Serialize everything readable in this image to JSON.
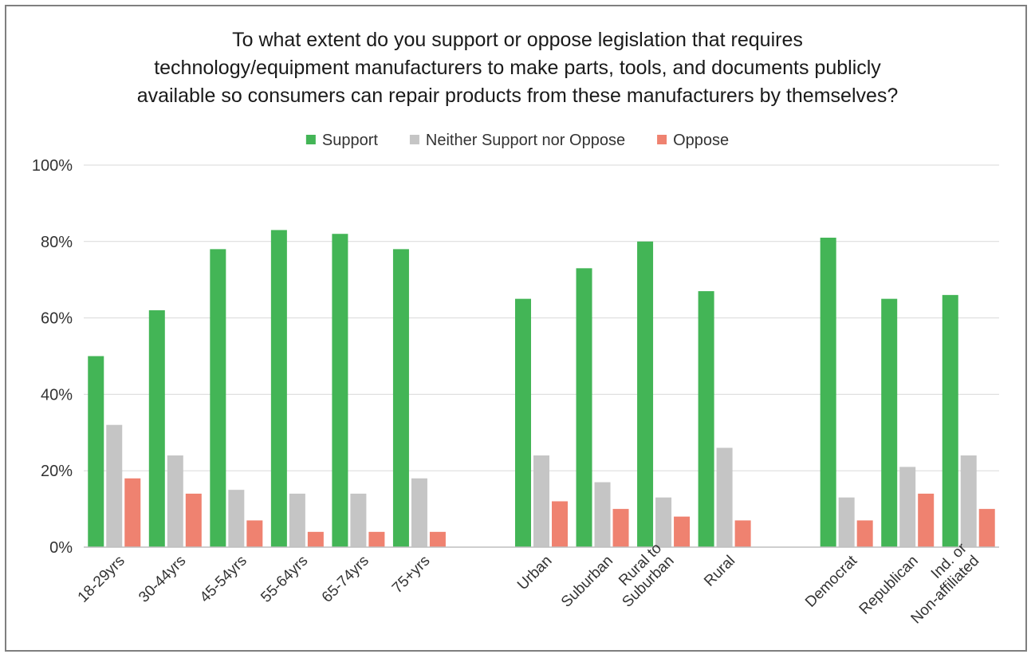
{
  "chart_data": {
    "type": "bar",
    "title_lines": [
      "To what extent do you support or oppose legislation that requires",
      "technology/equipment manufacturers to make parts, tools, and documents publicly",
      "available so consumers can repair products from these manufacturers by themselves?"
    ],
    "legend_position": "top",
    "grid": true,
    "ylim": [
      0,
      100
    ],
    "yticks": [
      "0%",
      "20%",
      "40%",
      "60%",
      "80%",
      "100%"
    ],
    "ytick_values": [
      0,
      20,
      40,
      60,
      80,
      100
    ],
    "groups": [
      {
        "categories": [
          {
            "label_lines": [
              "18-29yrs"
            ]
          },
          {
            "label_lines": [
              "30-44yrs"
            ]
          },
          {
            "label_lines": [
              "45-54yrs"
            ]
          },
          {
            "label_lines": [
              "55-64yrs"
            ]
          },
          {
            "label_lines": [
              "65-74yrs"
            ]
          },
          {
            "label_lines": [
              "75+yrs"
            ]
          }
        ]
      },
      {
        "categories": [
          {
            "label_lines": [
              "Urban"
            ]
          },
          {
            "label_lines": [
              "Suburban"
            ]
          },
          {
            "label_lines": [
              "Rural to",
              "Suburban"
            ]
          },
          {
            "label_lines": [
              "Rural"
            ]
          }
        ]
      },
      {
        "categories": [
          {
            "label_lines": [
              "Democrat"
            ]
          },
          {
            "label_lines": [
              "Republican"
            ]
          },
          {
            "label_lines": [
              "Ind. or",
              "Non-affiliated"
            ]
          }
        ]
      }
    ],
    "series": [
      {
        "name": "Support",
        "color": "#43b556",
        "values": [
          50,
          62,
          78,
          83,
          82,
          78,
          65,
          73,
          80,
          67,
          81,
          65,
          66
        ]
      },
      {
        "name": "Neither Support nor Oppose",
        "color": "#c5c5c5",
        "values": [
          32,
          24,
          15,
          14,
          14,
          18,
          24,
          17,
          13,
          26,
          13,
          21,
          24
        ]
      },
      {
        "name": "Oppose",
        "color": "#ef8270",
        "values": [
          18,
          14,
          7,
          4,
          4,
          4,
          12,
          10,
          8,
          7,
          7,
          14,
          10
        ]
      }
    ]
  }
}
